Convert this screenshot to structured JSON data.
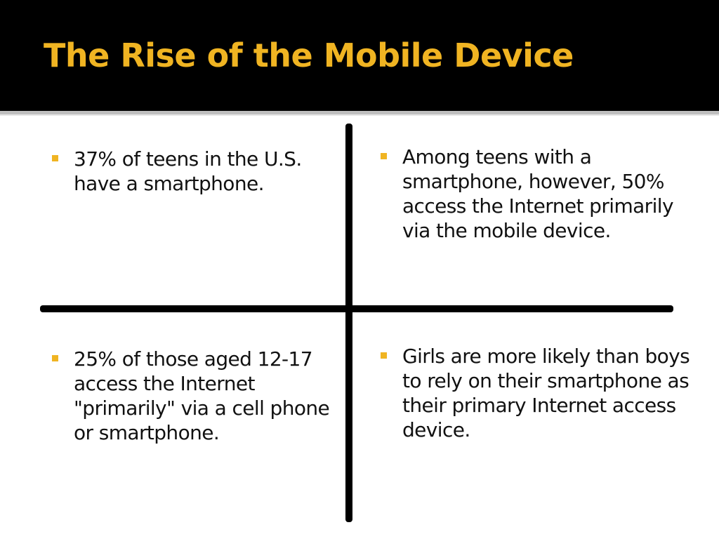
{
  "slide": {
    "title": "The Rise of the Mobile Device",
    "accent_color": "#f0b422",
    "bullet_icon": "square-bullet-icon",
    "quadrants": [
      {
        "text": "37% of teens in the U.S. have a smartphone."
      },
      {
        "text": "Among teens with a smartphone, however, 50% access the Internet primarily via the mobile device."
      },
      {
        "text": "25% of those aged 12-17 access the Internet \"primarily\" via a cell phone or smartphone."
      },
      {
        "text": "Girls are more likely than boys to rely on their smartphone as their primary Internet access device."
      }
    ]
  }
}
